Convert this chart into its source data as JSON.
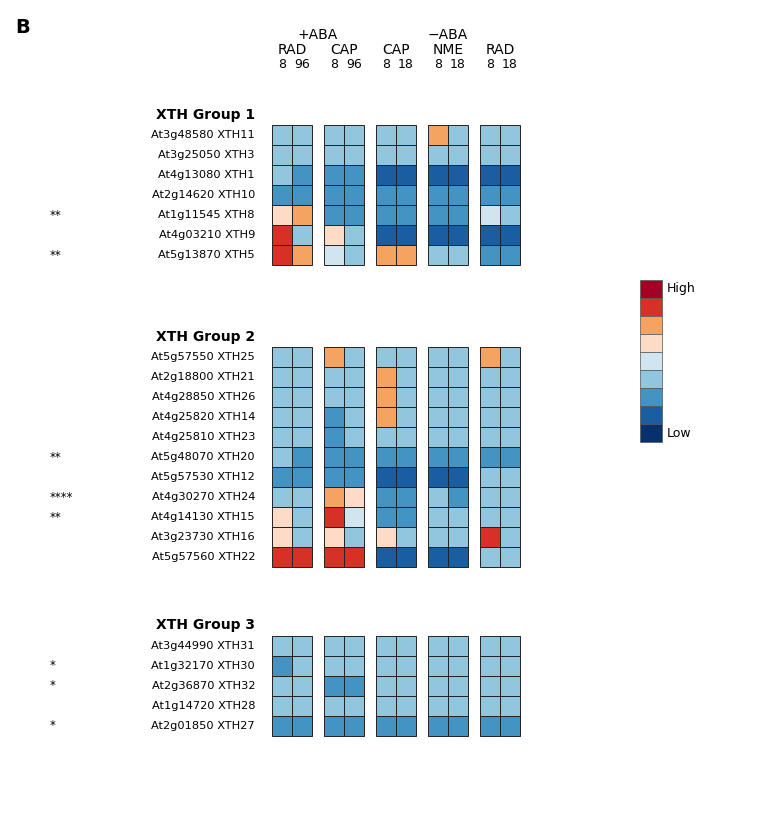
{
  "title_letter": "B",
  "aba_plus_label": "+ABA",
  "aba_minus_label": "−ABA",
  "col_labels": [
    "RAD",
    "CAP",
    "CAP",
    "NME",
    "RAD"
  ],
  "block_ncols": [
    2,
    2,
    2,
    2,
    2
  ],
  "time_labels_per_block": [
    [
      "8",
      "96"
    ],
    [
      "8",
      "96"
    ],
    [
      "8",
      "18"
    ],
    [
      "8",
      "18"
    ],
    [
      "8",
      "18"
    ]
  ],
  "groups": [
    {
      "title": "XTH Group 1",
      "genes": [
        "At3g48580 XTH11",
        "At3g25050 XTH3",
        "At4g13080 XTH1",
        "At2g14620 XTH10",
        "At1g11545 XTH8",
        "At4g03210 XTH9",
        "At5g13870 XTH5"
      ],
      "stars": [
        "",
        "",
        "",
        "",
        "**",
        "",
        "**"
      ],
      "heatmaps": [
        [
          [
            3,
            3
          ],
          [
            3,
            3
          ],
          [
            3,
            2
          ],
          [
            2,
            2
          ],
          [
            5,
            6
          ],
          [
            7,
            3
          ],
          [
            7,
            6
          ]
        ],
        [
          [
            3,
            3
          ],
          [
            3,
            3
          ],
          [
            2,
            2
          ],
          [
            2,
            2
          ],
          [
            2,
            2
          ],
          [
            5,
            3
          ],
          [
            4,
            3
          ]
        ],
        [
          [
            3,
            3
          ],
          [
            3,
            3
          ],
          [
            1,
            1
          ],
          [
            2,
            2
          ],
          [
            2,
            2
          ],
          [
            1,
            1
          ],
          [
            6,
            6
          ]
        ],
        [
          [
            6,
            3
          ],
          [
            3,
            3
          ],
          [
            1,
            1
          ],
          [
            2,
            2
          ],
          [
            2,
            2
          ],
          [
            1,
            1
          ],
          [
            3,
            3
          ]
        ],
        [
          [
            3,
            3
          ],
          [
            3,
            3
          ],
          [
            1,
            1
          ],
          [
            2,
            2
          ],
          [
            4,
            3
          ],
          [
            1,
            1
          ],
          [
            2,
            2
          ]
        ]
      ]
    },
    {
      "title": "XTH Group 2",
      "genes": [
        "At5g57550 XTH25",
        "At2g18800 XTH21",
        "At4g28850 XTH26",
        "At4g25820 XTH14",
        "At4g25810 XTH23",
        "At5g48070 XTH20",
        "At5g57530 XTH12",
        "At4g30270 XTH24",
        "At4g14130 XTH15",
        "At3g23730 XTH16",
        "At5g57560 XTH22"
      ],
      "stars": [
        "",
        "",
        "",
        "",
        "",
        "**",
        "",
        "****",
        "**",
        "",
        ""
      ],
      "heatmaps": [
        [
          [
            3,
            3
          ],
          [
            3,
            3
          ],
          [
            3,
            3
          ],
          [
            3,
            3
          ],
          [
            3,
            3
          ],
          [
            3,
            2
          ],
          [
            2,
            2
          ],
          [
            3,
            3
          ],
          [
            5,
            3
          ],
          [
            5,
            3
          ],
          [
            7,
            7
          ]
        ],
        [
          [
            6,
            3
          ],
          [
            3,
            3
          ],
          [
            3,
            3
          ],
          [
            2,
            3
          ],
          [
            2,
            3
          ],
          [
            2,
            2
          ],
          [
            2,
            2
          ],
          [
            6,
            5
          ],
          [
            7,
            4
          ],
          [
            5,
            3
          ],
          [
            7,
            7
          ]
        ],
        [
          [
            3,
            3
          ],
          [
            6,
            3
          ],
          [
            6,
            3
          ],
          [
            6,
            3
          ],
          [
            3,
            3
          ],
          [
            2,
            2
          ],
          [
            1,
            1
          ],
          [
            2,
            2
          ],
          [
            2,
            2
          ],
          [
            5,
            3
          ],
          [
            1,
            1
          ]
        ],
        [
          [
            3,
            3
          ],
          [
            3,
            3
          ],
          [
            3,
            3
          ],
          [
            3,
            3
          ],
          [
            3,
            3
          ],
          [
            2,
            2
          ],
          [
            1,
            1
          ],
          [
            3,
            2
          ],
          [
            3,
            3
          ],
          [
            3,
            3
          ],
          [
            1,
            1
          ]
        ],
        [
          [
            6,
            3
          ],
          [
            3,
            3
          ],
          [
            3,
            3
          ],
          [
            3,
            3
          ],
          [
            3,
            3
          ],
          [
            2,
            2
          ],
          [
            3,
            3
          ],
          [
            3,
            3
          ],
          [
            3,
            3
          ],
          [
            7,
            3
          ],
          [
            3,
            3
          ]
        ]
      ]
    },
    {
      "title": "XTH Group 3",
      "genes": [
        "At3g44990 XTH31",
        "At1g32170 XTH30",
        "At2g36870 XTH32",
        "At1g14720 XTH28",
        "At2g01850 XTH27"
      ],
      "stars": [
        "",
        "*",
        "*",
        "",
        "*"
      ],
      "heatmaps": [
        [
          [
            3,
            3
          ],
          [
            2,
            3
          ],
          [
            3,
            3
          ],
          [
            3,
            3
          ],
          [
            2,
            2
          ]
        ],
        [
          [
            3,
            3
          ],
          [
            3,
            3
          ],
          [
            2,
            2
          ],
          [
            3,
            3
          ],
          [
            2,
            2
          ]
        ],
        [
          [
            3,
            3
          ],
          [
            3,
            3
          ],
          [
            3,
            3
          ],
          [
            3,
            3
          ],
          [
            2,
            2
          ]
        ],
        [
          [
            3,
            3
          ],
          [
            3,
            3
          ],
          [
            3,
            3
          ],
          [
            3,
            3
          ],
          [
            2,
            2
          ]
        ],
        [
          [
            3,
            3
          ],
          [
            3,
            3
          ],
          [
            3,
            3
          ],
          [
            3,
            3
          ],
          [
            2,
            2
          ]
        ]
      ]
    }
  ],
  "colormap": {
    "-1": "#aaaaaa",
    "0": "#08306b",
    "1": "#1a5da0",
    "2": "#4393c3",
    "3": "#92c5de",
    "4": "#d1e5f0",
    "5": "#fddbc7",
    "6": "#f4a460",
    "7": "#d73027",
    "8": "#a50026"
  },
  "legend_colors": [
    "#a50026",
    "#d73027",
    "#f4a460",
    "#fddbc7",
    "#d1e5f0",
    "#92c5de",
    "#4393c3",
    "#1a5da0",
    "#08306b"
  ]
}
